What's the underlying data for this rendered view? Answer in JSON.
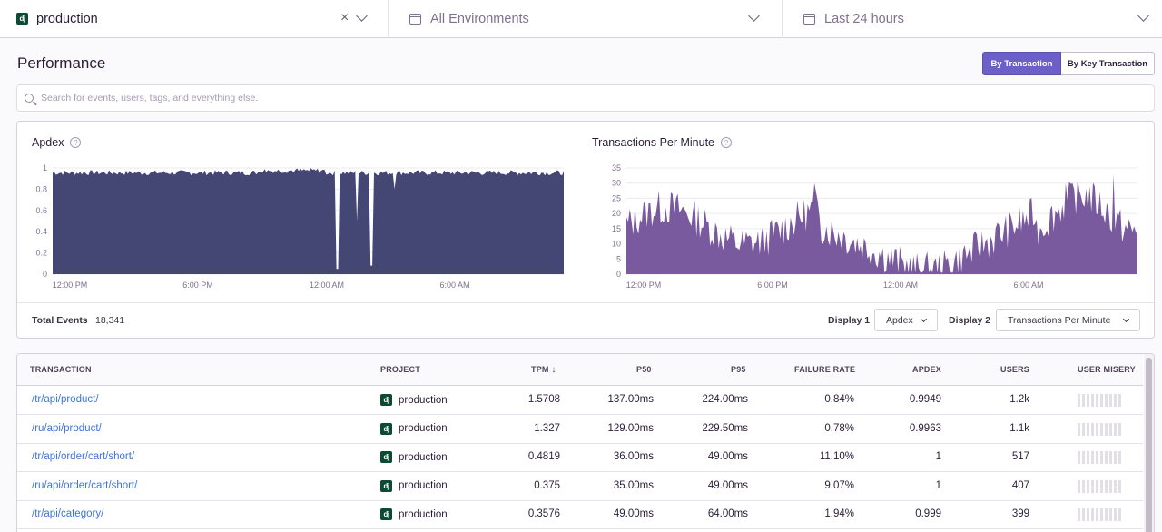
{
  "topbar": {
    "project": "production",
    "project_icon": "dj",
    "environment": "All Environments",
    "time_range": "Last 24 hours"
  },
  "header": {
    "title": "Performance",
    "tabs": [
      {
        "label": "By Transaction",
        "active": true
      },
      {
        "label": "By Key Transaction",
        "active": false
      }
    ]
  },
  "search": {
    "placeholder": "Search for events, users, tags, and everything else."
  },
  "charts": {
    "apdex": {
      "title": "Apdex",
      "color": "#444674",
      "y_ticks": [
        "1",
        "0.8",
        "0.6",
        "0.4",
        "0.2",
        "0"
      ],
      "x_ticks": [
        "12:00 PM",
        "6:00 PM",
        "12:00 AM",
        "6:00 AM"
      ]
    },
    "tpm": {
      "title": "Transactions Per Minute",
      "color": "#7a5a9e",
      "y_ticks": [
        "35",
        "30",
        "25",
        "20",
        "15",
        "10",
        "5",
        "0"
      ],
      "x_ticks": [
        "12:00 PM",
        "6:00 PM",
        "12:00 AM",
        "6:00 AM"
      ]
    }
  },
  "footer": {
    "total_label": "Total Events",
    "total_value": "18,341",
    "display1_label": "Display 1",
    "display1_value": "Apdex",
    "display2_label": "Display 2",
    "display2_value": "Transactions Per Minute"
  },
  "table": {
    "columns": [
      "TRANSACTION",
      "PROJECT",
      "TPM",
      "P50",
      "P95",
      "FAILURE RATE",
      "APDEX",
      "USERS",
      "USER MISERY"
    ],
    "sort_indicator": "↓",
    "rows": [
      {
        "transaction": "/tr/api/product/",
        "project": "production",
        "tpm": "1.5708",
        "p50": "137.00ms",
        "p95": "224.00ms",
        "failure_rate": "0.84%",
        "apdex": "0.9949",
        "users": "1.2k"
      },
      {
        "transaction": "/ru/api/product/",
        "project": "production",
        "tpm": "1.327",
        "p50": "129.00ms",
        "p95": "229.50ms",
        "failure_rate": "0.78%",
        "apdex": "0.9963",
        "users": "1.1k"
      },
      {
        "transaction": "/tr/api/order/cart/short/",
        "project": "production",
        "tpm": "0.4819",
        "p50": "36.00ms",
        "p95": "49.00ms",
        "failure_rate": "11.10%",
        "apdex": "1",
        "users": "517"
      },
      {
        "transaction": "/ru/api/order/cart/short/",
        "project": "production",
        "tpm": "0.375",
        "p50": "35.00ms",
        "p95": "49.00ms",
        "failure_rate": "9.07%",
        "apdex": "1",
        "users": "407"
      },
      {
        "transaction": "/tr/api/category/",
        "project": "production",
        "tpm": "0.3576",
        "p50": "49.00ms",
        "p95": "64.00ms",
        "failure_rate": "1.94%",
        "apdex": "0.999",
        "users": "399"
      }
    ]
  }
}
